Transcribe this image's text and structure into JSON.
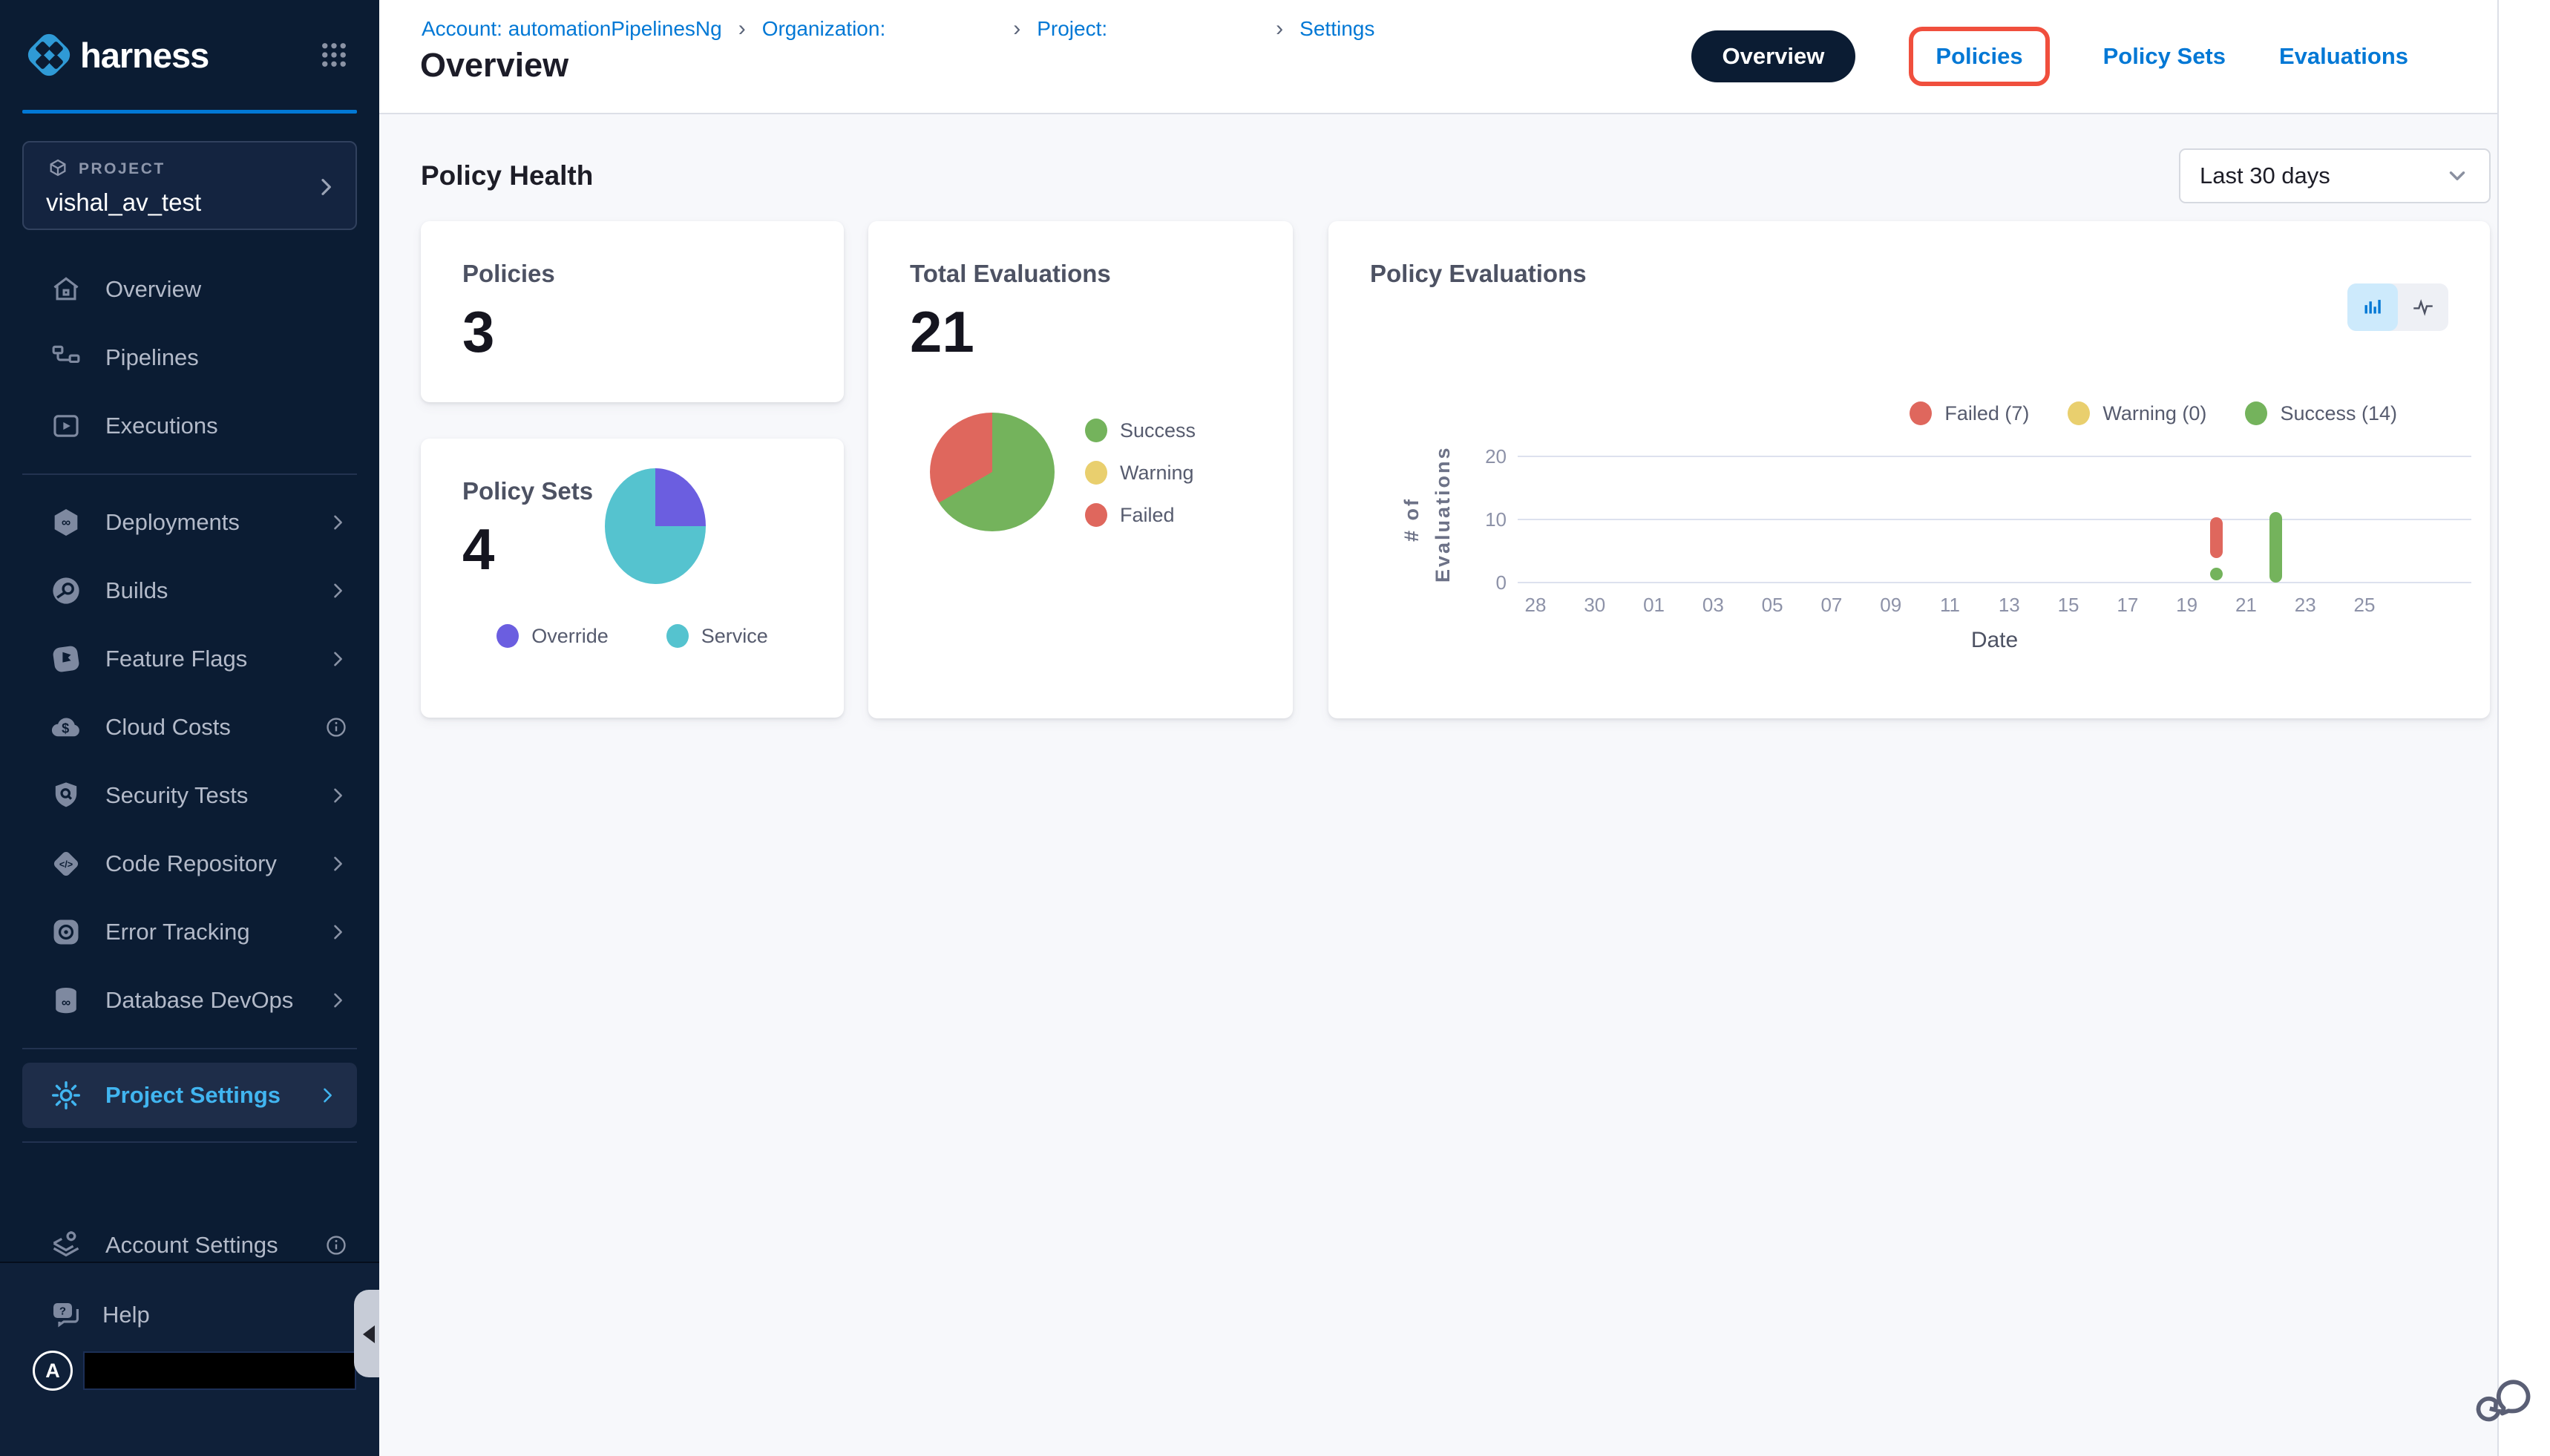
{
  "brand": {
    "name": "harness"
  },
  "colors": {
    "primary_blue": "#0278d5",
    "sidebar_bg": "#0b1c33",
    "active_nav": "#41b5f0",
    "annotation_red": "#f04f3d",
    "success_green": "#74b35c",
    "failed_red": "#df675d",
    "warning_yellow": "#e9cf6e",
    "override_purple": "#6b5ee0",
    "service_teal": "#55c3cf",
    "redaction_black": "#000000"
  },
  "sidebar": {
    "project_card": {
      "label": "PROJECT",
      "name": "vishal_av_test"
    },
    "nav_primary": [
      {
        "label": "Overview"
      },
      {
        "label": "Pipelines"
      },
      {
        "label": "Executions"
      }
    ],
    "nav_modules": [
      {
        "label": "Deployments",
        "trailing": "chevron"
      },
      {
        "label": "Builds",
        "trailing": "chevron"
      },
      {
        "label": "Feature Flags",
        "trailing": "chevron"
      },
      {
        "label": "Cloud Costs",
        "trailing": "info"
      },
      {
        "label": "Security Tests",
        "trailing": "chevron"
      },
      {
        "label": "Code Repository",
        "trailing": "chevron"
      },
      {
        "label": "Error Tracking",
        "trailing": "chevron"
      },
      {
        "label": "Database DevOps",
        "trailing": "chevron"
      }
    ],
    "project_settings": {
      "label": "Project Settings",
      "active": true
    },
    "account_settings": {
      "label": "Account Settings",
      "trailing": "info"
    },
    "help": {
      "label": "Help"
    },
    "avatar_initial": "A"
  },
  "header": {
    "breadcrumb": {
      "account": "Account: automationPipelinesNg",
      "organization": "Organization:",
      "project": "Project:",
      "settings": "Settings"
    },
    "page_title": "Overview",
    "tabs": [
      {
        "label": "Overview",
        "active": true
      },
      {
        "label": "Policies",
        "annotated": true
      },
      {
        "label": "Policy Sets"
      },
      {
        "label": "Evaluations"
      }
    ]
  },
  "main": {
    "section_title": "Policy Health",
    "date_filter": {
      "value": "Last 30 days"
    },
    "cards": {
      "policies": {
        "title": "Policies",
        "value": "3"
      },
      "total_evaluations": {
        "title": "Total Evaluations",
        "value": "21"
      },
      "policy_sets": {
        "title": "Policy Sets",
        "value": "4"
      },
      "policy_evaluations": {
        "title": "Policy Evaluations"
      }
    }
  },
  "chart_data": [
    {
      "type": "pie",
      "title": "Total Evaluations",
      "total": 21,
      "slices": [
        {
          "label": "Success",
          "value": 14,
          "color": "#74b35c"
        },
        {
          "label": "Warning",
          "value": 0,
          "color": "#e9cf6e"
        },
        {
          "label": "Failed",
          "value": 7,
          "color": "#df675d"
        }
      ],
      "legend_position": "right"
    },
    {
      "type": "pie",
      "title": "Policy Sets",
      "total": 4,
      "slices": [
        {
          "label": "Override",
          "value": 1,
          "color": "#6b5ee0"
        },
        {
          "label": "Service",
          "value": 3,
          "color": "#55c3cf"
        }
      ],
      "legend_position": "bottom"
    },
    {
      "type": "bar",
      "title": "Policy Evaluations",
      "xlabel": "Date",
      "ylabel": "# of Evaluations",
      "ylim": [
        0,
        20
      ],
      "yticks": [
        0,
        10,
        20
      ],
      "grid": "horizontal",
      "categories": [
        "28",
        "30",
        "01",
        "03",
        "05",
        "07",
        "09",
        "11",
        "13",
        "15",
        "17",
        "19",
        "21",
        "23",
        "25"
      ],
      "legend": [
        {
          "label": "Failed (7)",
          "color": "#df675d"
        },
        {
          "label": "Warning (0)",
          "color": "#e9cf6e"
        },
        {
          "label": "Success (14)",
          "color": "#74b35c"
        }
      ],
      "series_totals": {
        "Failed": 7,
        "Warning": 0,
        "Success": 14
      },
      "bars": [
        {
          "x": "20",
          "tick_offset": 11.5,
          "segments": [
            {
              "series": "Success",
              "color": "#74b35c",
              "from": 0.3,
              "to": 2.4
            },
            {
              "series": "Failed",
              "color": "#df675d",
              "from": 3.9,
              "to": 10.4
            }
          ]
        },
        {
          "x": "22",
          "tick_offset": 12.5,
          "segments": [
            {
              "series": "Success",
              "color": "#74b35c",
              "from": 0,
              "to": 11.2
            }
          ]
        }
      ]
    }
  ]
}
